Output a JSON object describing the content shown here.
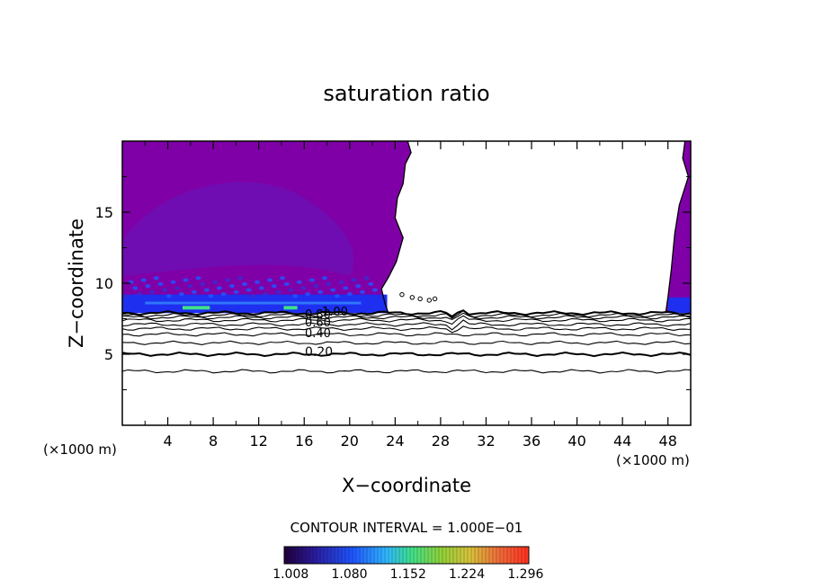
{
  "chart_data": {
    "type": "heatmap",
    "title": "saturation ratio",
    "xlabel": "X−coordinate",
    "ylabel": "Z−coordinate",
    "x_unit_left": "(×1000 m)",
    "x_unit_right": "(×1000 m)",
    "xlim": [
      0,
      50
    ],
    "ylim": [
      0,
      20
    ],
    "x_ticks": [
      "4",
      "8",
      "12",
      "16",
      "20",
      "24",
      "28",
      "32",
      "36",
      "40",
      "44",
      "48"
    ],
    "y_ticks": [
      "5",
      "10",
      "15"
    ],
    "contour_interval_text": "CONTOUR INTERVAL = 1.000E−01",
    "contour_labels": [
      "0.20",
      "0.40",
      "0.60",
      "0.80",
      "1.00"
    ],
    "colorbar_ticks": [
      "1.008",
      "1.080",
      "1.152",
      "1.224",
      "1.296"
    ],
    "colorbar_range": [
      1.0,
      1.3
    ],
    "fill_colors": {
      "background_fill": "#8000a8",
      "dark_region": "#6a10b4",
      "low_band": "#1e2ff0",
      "highlight": "#3fe08a"
    },
    "contours": [
      {
        "level": 0.1,
        "z": 3.8
      },
      {
        "level": 0.2,
        "z": 5.0
      },
      {
        "level": 0.3,
        "z": 5.8
      },
      {
        "level": 0.4,
        "z": 6.4
      },
      {
        "level": 0.5,
        "z": 6.8
      },
      {
        "level": 0.6,
        "z": 7.1
      },
      {
        "level": 0.7,
        "z": 7.4
      },
      {
        "level": 0.8,
        "z": 7.6
      },
      {
        "level": 0.9,
        "z": 7.75
      },
      {
        "level": 1.0,
        "z": 7.9
      }
    ]
  }
}
